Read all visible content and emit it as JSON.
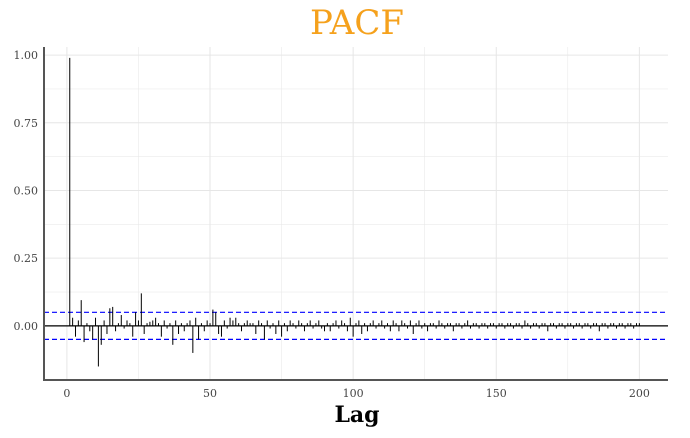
{
  "chart_data": {
    "type": "bar",
    "title": "PACF",
    "xlabel": "Lag",
    "ylabel": "",
    "xlim": [
      -8,
      210
    ],
    "ylim": [
      -0.2,
      1.03
    ],
    "x_ticks": [
      0,
      50,
      100,
      150,
      200
    ],
    "x_tick_labels": [
      "0",
      "50",
      "100",
      "150",
      "200"
    ],
    "y_ticks": [
      0.0,
      0.25,
      0.5,
      0.75,
      1.0
    ],
    "y_tick_labels": [
      "0.00",
      "0.25",
      "0.50",
      "0.75",
      "1.00"
    ],
    "confidence_bound": 0.05,
    "grid": true,
    "colors": {
      "title": "#f5a11c",
      "bars": "#000000",
      "confidence_lines": "#0000ff",
      "grid": "#e6e6e6",
      "axis": "#555555"
    },
    "lags": [
      1,
      2,
      3,
      4,
      5,
      6,
      7,
      8,
      9,
      10,
      11,
      12,
      13,
      14,
      15,
      16,
      17,
      18,
      19,
      20,
      21,
      22,
      23,
      24,
      25,
      26,
      27,
      28,
      29,
      30,
      31,
      32,
      33,
      34,
      35,
      36,
      37,
      38,
      39,
      40,
      41,
      42,
      43,
      44,
      45,
      46,
      47,
      48,
      49,
      50,
      51,
      52,
      53,
      54,
      55,
      56,
      57,
      58,
      59,
      60,
      61,
      62,
      63,
      64,
      65,
      66,
      67,
      68,
      69,
      70,
      71,
      72,
      73,
      74,
      75,
      76,
      77,
      78,
      79,
      80,
      81,
      82,
      83,
      84,
      85,
      86,
      87,
      88,
      89,
      90,
      91,
      92,
      93,
      94,
      95,
      96,
      97,
      98,
      99,
      100,
      101,
      102,
      103,
      104,
      105,
      106,
      107,
      108,
      109,
      110,
      111,
      112,
      113,
      114,
      115,
      116,
      117,
      118,
      119,
      120,
      121,
      122,
      123,
      124,
      125,
      126,
      127,
      128,
      129,
      130,
      131,
      132,
      133,
      134,
      135,
      136,
      137,
      138,
      139,
      140,
      141,
      142,
      143,
      144,
      145,
      146,
      147,
      148,
      149,
      150,
      151,
      152,
      153,
      154,
      155,
      156,
      157,
      158,
      159,
      160,
      161,
      162,
      163,
      164,
      165,
      166,
      167,
      168,
      169,
      170,
      171,
      172,
      173,
      174,
      175,
      176,
      177,
      178,
      179,
      180,
      181,
      182,
      183,
      184,
      185,
      186,
      187,
      188,
      189,
      190,
      191,
      192,
      193,
      194,
      195,
      196,
      197,
      198,
      199,
      200
    ],
    "values": [
      0.99,
      0.03,
      -0.04,
      0.02,
      0.095,
      -0.06,
      0.01,
      -0.02,
      -0.05,
      0.03,
      -0.15,
      -0.07,
      0.02,
      -0.03,
      0.065,
      0.07,
      -0.02,
      0.01,
      0.04,
      -0.01,
      0.02,
      0.01,
      -0.04,
      0.05,
      0.02,
      0.12,
      -0.03,
      0.01,
      0.015,
      0.02,
      0.03,
      0.01,
      -0.04,
      0.02,
      -0.01,
      0.01,
      -0.07,
      0.02,
      -0.03,
      0.01,
      -0.02,
      0.01,
      0.02,
      -0.1,
      0.03,
      -0.05,
      0.01,
      -0.02,
      0.02,
      0.01,
      0.06,
      0.05,
      -0.03,
      -0.04,
      0.02,
      -0.01,
      0.03,
      0.02,
      0.03,
      0.01,
      -0.02,
      0.01,
      0.02,
      0.01,
      0.01,
      -0.03,
      0.02,
      0.01,
      -0.05,
      0.02,
      -0.01,
      0.01,
      -0.03,
      0.02,
      -0.04,
      0.01,
      -0.02,
      0.02,
      0.01,
      -0.01,
      0.02,
      0.01,
      -0.02,
      0.01,
      0.02,
      -0.01,
      0.01,
      0.02,
      -0.01,
      -0.02,
      0.01,
      -0.02,
      0.01,
      0.02,
      -0.01,
      0.02,
      0.01,
      -0.02,
      0.03,
      -0.04,
      0.01,
      0.02,
      -0.03,
      0.01,
      -0.02,
      0.01,
      0.02,
      -0.01,
      0.01,
      0.02,
      -0.01,
      0.01,
      -0.02,
      0.02,
      0.01,
      -0.02,
      0.02,
      0.01,
      -0.01,
      0.02,
      -0.03,
      0.01,
      0.02,
      -0.01,
      0.01,
      -0.02,
      0.01,
      0.01,
      -0.01,
      0.02,
      0.01,
      -0.01,
      0.01,
      0.01,
      -0.02,
      0.01,
      0.01,
      -0.01,
      0.01,
      0.02,
      -0.01,
      0.01,
      0.01,
      -0.01,
      0.01,
      0.01,
      -0.01,
      0.01,
      0.01,
      -0.01,
      0.01,
      0.01,
      -0.01,
      0.01,
      0.01,
      -0.01,
      0.01,
      0.01,
      -0.01,
      0.02,
      0.01,
      -0.01,
      0.01,
      0.01,
      -0.01,
      0.01,
      0.01,
      -0.02,
      0.01,
      0.01,
      -0.01,
      0.01,
      0.01,
      -0.01,
      0.01,
      0.01,
      -0.01,
      0.01,
      0.01,
      -0.01,
      0.01,
      0.01,
      -0.01,
      0.01,
      0.01,
      -0.02,
      0.01,
      0.01,
      -0.01,
      0.01,
      0.01,
      -0.01,
      0.01,
      0.01,
      -0.01,
      0.01,
      0.01,
      -0.01,
      0.01,
      0.01,
      -0.01,
      0.01,
      0.01
    ]
  }
}
